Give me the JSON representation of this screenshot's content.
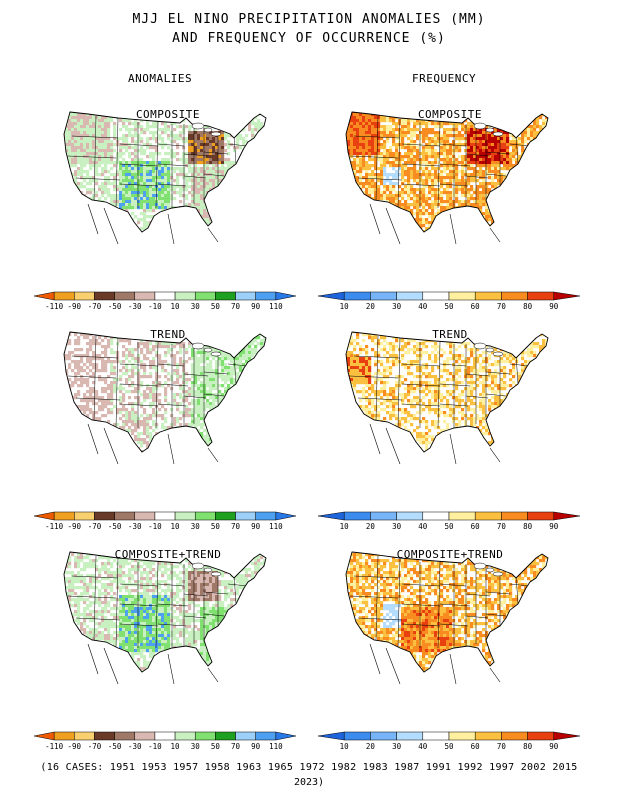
{
  "title": {
    "line1": "MJJ EL NINO PRECIPITATION ANOMALIES (MM)",
    "line2": "AND FREQUENCY OF OCCURRENCE (%)"
  },
  "columns": {
    "anomalies": "ANOMALIES",
    "frequency": "FREQUENCY"
  },
  "panels": [
    {
      "id": "anom-composite",
      "label": "COMPOSITE",
      "kind": "anomaly",
      "pattern": "composite"
    },
    {
      "id": "freq-composite",
      "label": "COMPOSITE",
      "kind": "frequency",
      "pattern": "composite"
    },
    {
      "id": "anom-trend",
      "label": "TREND",
      "kind": "anomaly",
      "pattern": "trend"
    },
    {
      "id": "freq-trend",
      "label": "TREND",
      "kind": "frequency",
      "pattern": "trend"
    },
    {
      "id": "anom-comptrend",
      "label": "COMPOSITE+TREND",
      "kind": "anomaly",
      "pattern": "combined"
    },
    {
      "id": "freq-comptrend",
      "label": "COMPOSITE+TREND",
      "kind": "frequency",
      "pattern": "combined"
    }
  ],
  "anomaly_colorbar": {
    "ticks": [
      "-110",
      "-90",
      "-70",
      "-50",
      "-30",
      "-10",
      "10",
      "30",
      "50",
      "70",
      "90",
      "110"
    ],
    "colors": [
      "#ee5a00",
      "#f0a020",
      "#f8d070",
      "#6a3a28",
      "#a07868",
      "#d8b8b0",
      "#ffffff",
      "#c8f0c0",
      "#80e070",
      "#20a020",
      "#9cd0f8",
      "#4ea0f0",
      "#2878e8"
    ]
  },
  "frequency_colorbar": {
    "ticks": [
      "10",
      "20",
      "30",
      "40",
      "50",
      "60",
      "70",
      "80",
      "90"
    ],
    "colors": [
      "#1e64dc",
      "#3c8cf0",
      "#78b4f8",
      "#b4dcfc",
      "#ffffff",
      "#fff0a0",
      "#fcc040",
      "#f88c20",
      "#e84010",
      "#b80000"
    ]
  },
  "cases": {
    "line1": "(16 CASES:  1951 1953 1957 1958 1963 1965 1972 1982 1983 1987 1991 1992 1997 2002 2015",
    "line2": "2023)"
  }
}
